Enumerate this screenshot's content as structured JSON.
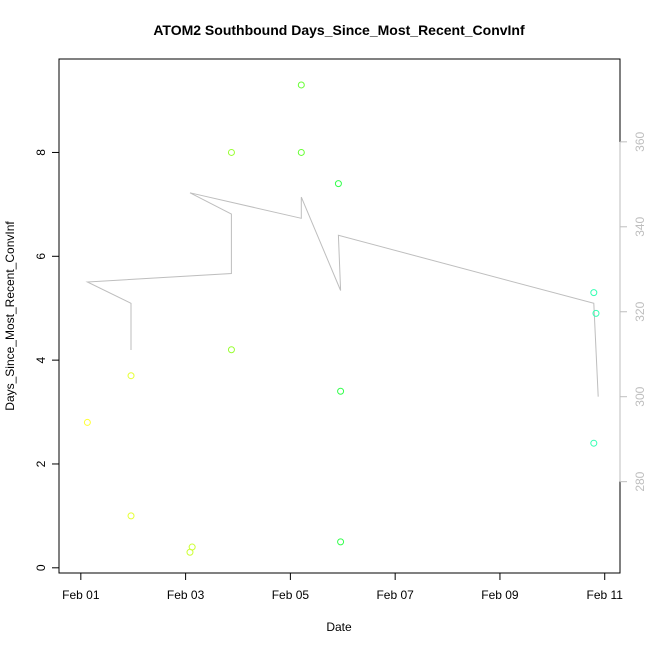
{
  "chart_data": {
    "type": "scatter",
    "title": "ATOM2 Southbound Days_Since_Most_Recent_ConvInf",
    "xlabel": "Date",
    "ylabel": "Days_Since_Most_Recent_ConvInf",
    "x_ticks": [
      "Feb 01",
      "Feb 03",
      "Feb 05",
      "Feb 07",
      "Feb 09",
      "Feb 11"
    ],
    "y_ticks": [
      "0",
      "2",
      "4",
      "6",
      "8"
    ],
    "y2_ticks": [
      "280",
      "300",
      "320",
      "340",
      "360"
    ],
    "xlim": [
      "2024-01-31 14:00",
      "2024-02-11 07:00"
    ],
    "ylim": [
      -0.1,
      9.8
    ],
    "y2lim": [
      258.5,
      379.5
    ],
    "grid": false,
    "points": [
      {
        "x": "2024-02-01 03:00",
        "y": 2.8,
        "color": "#ffff33"
      },
      {
        "x": "2024-02-01 23:00",
        "y": 3.7,
        "color": "#e5ff33"
      },
      {
        "x": "2024-02-01 23:00",
        "y": 1.0,
        "color": "#e5ff33"
      },
      {
        "x": "2024-02-03 02:00",
        "y": 0.3,
        "color": "#ccff33"
      },
      {
        "x": "2024-02-03 03:00",
        "y": 0.4,
        "color": "#ccff33"
      },
      {
        "x": "2024-02-03 21:00",
        "y": 8.0,
        "color": "#99ff33"
      },
      {
        "x": "2024-02-03 21:00",
        "y": 4.2,
        "color": "#99ff33"
      },
      {
        "x": "2024-02-05 05:00",
        "y": 9.3,
        "color": "#66ff33"
      },
      {
        "x": "2024-02-05 05:00",
        "y": 8.0,
        "color": "#66ff33"
      },
      {
        "x": "2024-02-05 22:00",
        "y": 7.4,
        "color": "#33ff4c"
      },
      {
        "x": "2024-02-05 23:00",
        "y": 3.4,
        "color": "#33ff4c"
      },
      {
        "x": "2024-02-05 23:00",
        "y": 0.5,
        "color": "#33ff4c"
      },
      {
        "x": "2024-02-10 19:00",
        "y": 5.3,
        "color": "#33ffb2"
      },
      {
        "x": "2024-02-10 20:00",
        "y": 4.9,
        "color": "#33ffb2"
      },
      {
        "x": "2024-02-10 19:00",
        "y": 2.4,
        "color": "#33ffb2"
      }
    ],
    "secondary_series": {
      "axis": "right",
      "color": "#bebebe",
      "points": [
        {
          "x": "2024-02-01 23:00",
          "y": 311
        },
        {
          "x": "2024-02-01 23:00",
          "y": 322
        },
        {
          "x": "2024-02-01 03:00",
          "y": 327
        },
        {
          "x": "2024-02-03 21:00",
          "y": 329
        },
        {
          "x": "2024-02-03 21:00",
          "y": 343
        },
        {
          "x": "2024-02-03 02:00",
          "y": 348
        },
        {
          "x": "2024-02-05 05:00",
          "y": 342
        },
        {
          "x": "2024-02-05 05:00",
          "y": 347
        },
        {
          "x": "2024-02-05 23:00",
          "y": 325
        },
        {
          "x": "2024-02-05 22:00",
          "y": 338
        },
        {
          "x": "2024-02-10 19:00",
          "y": 322
        },
        {
          "x": "2024-02-10 21:00",
          "y": 300
        }
      ]
    }
  }
}
